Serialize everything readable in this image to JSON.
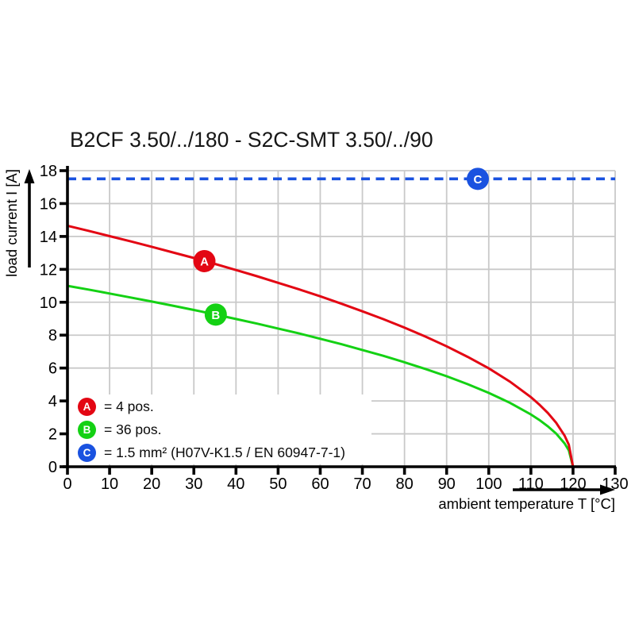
{
  "title": "B2CF 3.50/../180 - S2C-SMT 3.50/../90",
  "colors": {
    "red": "#e30613",
    "green": "#14d114",
    "blue": "#1a52e0",
    "grid": "#c9c9c9",
    "axis": "#000000",
    "text": "#161616"
  },
  "chart_data": {
    "type": "line",
    "title": "B2CF 3.50/../180 - S2C-SMT 3.50/../90",
    "xlabel": "ambient temperature T [°C]",
    "ylabel": "load current I [A]",
    "xlim": [
      0,
      130
    ],
    "ylim": [
      0,
      18
    ],
    "xticks": [
      0,
      10,
      20,
      30,
      40,
      50,
      60,
      70,
      80,
      90,
      100,
      110,
      120,
      130
    ],
    "yticks": [
      0,
      2,
      4,
      6,
      8,
      10,
      12,
      14,
      16,
      18
    ],
    "grid": true,
    "legend_position": "bottom-left",
    "series": [
      {
        "name": "A",
        "label": "= 4 pos.",
        "color": "#e30613",
        "style": "solid",
        "marker_point": {
          "x": 32.5,
          "y": 12.5
        },
        "x": [
          0,
          5,
          10,
          15,
          20,
          25,
          30,
          35,
          40,
          45,
          50,
          55,
          60,
          65,
          70,
          75,
          80,
          85,
          90,
          95,
          100,
          105,
          110,
          112,
          114,
          116,
          118,
          119,
          120
        ],
        "y": [
          14.65,
          14.34,
          14.02,
          13.7,
          13.37,
          13.03,
          12.69,
          12.33,
          11.96,
          11.58,
          11.18,
          10.78,
          10.36,
          9.91,
          9.45,
          8.97,
          8.46,
          7.91,
          7.32,
          6.68,
          5.98,
          5.18,
          4.23,
          3.78,
          3.27,
          2.67,
          1.89,
          1.34,
          0
        ]
      },
      {
        "name": "B",
        "label": "= 36 pos.",
        "color": "#14d114",
        "style": "solid",
        "marker_point": {
          "x": 35.2,
          "y": 9.25
        },
        "x": [
          0,
          5,
          10,
          15,
          20,
          25,
          30,
          35,
          40,
          45,
          50,
          55,
          60,
          65,
          70,
          75,
          80,
          85,
          90,
          95,
          100,
          105,
          110,
          112,
          114,
          116,
          118,
          119,
          120
        ],
        "y": [
          11.0,
          10.77,
          10.53,
          10.29,
          10.04,
          9.79,
          9.53,
          9.26,
          8.98,
          8.7,
          8.4,
          8.1,
          7.78,
          7.45,
          7.1,
          6.74,
          6.35,
          5.94,
          5.5,
          5.02,
          4.49,
          3.89,
          3.18,
          2.84,
          2.46,
          2.01,
          1.42,
          1.0,
          0
        ]
      },
      {
        "name": "C",
        "label": "= 1.5 mm² (H07V-K1.5 / EN 60947-7-1)",
        "color": "#1a52e0",
        "style": "dashed",
        "marker_point": {
          "x": 97.4,
          "y": 17.5
        },
        "x": [
          0,
          130
        ],
        "y": [
          17.5,
          17.5
        ]
      }
    ]
  }
}
